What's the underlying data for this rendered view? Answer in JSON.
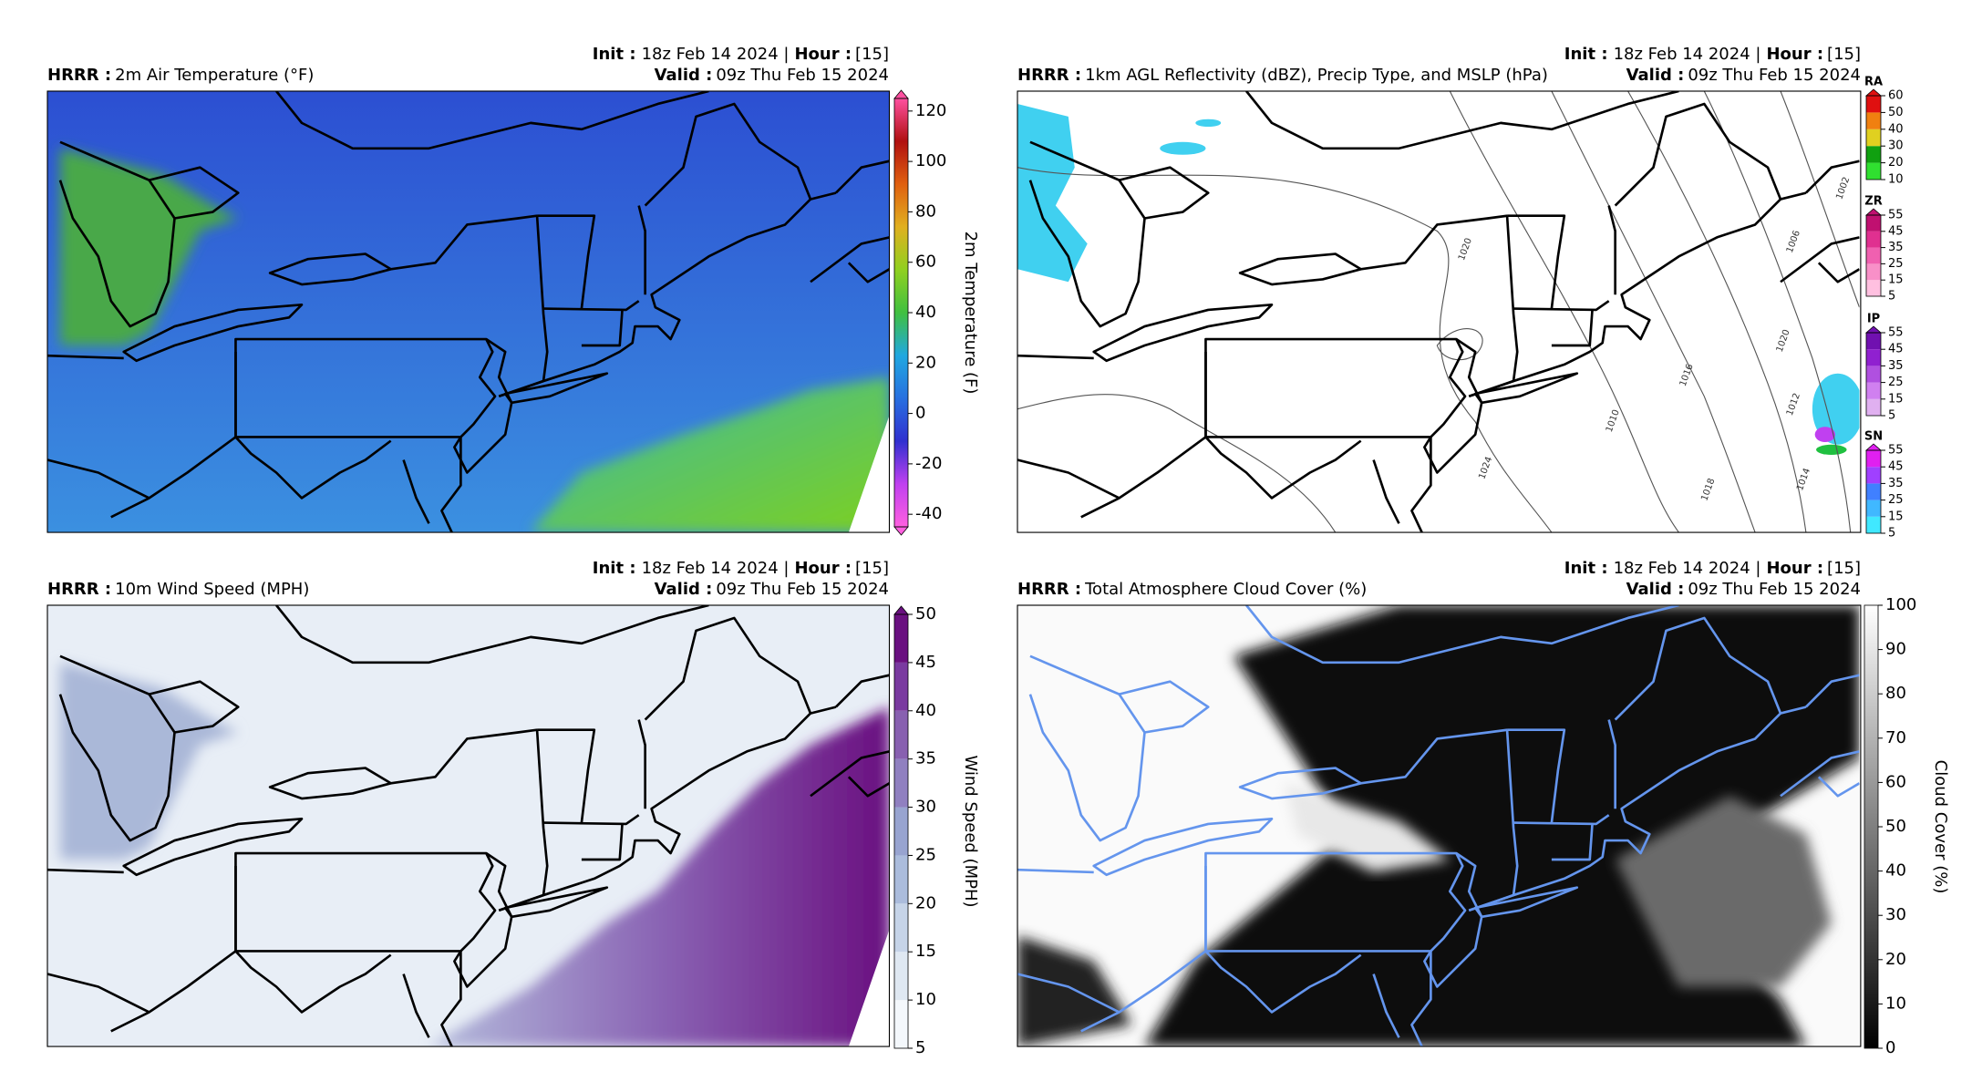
{
  "panels": [
    {
      "model": "HRRR :",
      "title": "2m Air Temperature (°F)",
      "init_label": "Init :",
      "init": "18z Feb 14 2024 |",
      "hour_label": "Hour :",
      "hour": "[15]",
      "valid_label": "Valid :",
      "valid": "09z Thu Feb 15 2024",
      "colorbar": {
        "label": "2m Temperature (F)",
        "lim": [
          -45,
          125
        ],
        "ticks": [
          -40,
          -20,
          0,
          20,
          40,
          60,
          80,
          100,
          120
        ],
        "extend": "both",
        "discrete": false,
        "colors": [
          "#ff60e0",
          "#c040f0",
          "#3030d0",
          "#2870e0",
          "#20a8e0",
          "#40c040",
          "#90d020",
          "#e0b020",
          "#e06010",
          "#b01010",
          "#ff50a0"
        ]
      }
    },
    {
      "model": "HRRR :",
      "title": "1km AGL Reflectivity (dBZ), Precip Type, and MSLP (hPa)",
      "init_label": "Init :",
      "init": "18z Feb 14 2024 |",
      "hour_label": "Hour :",
      "hour": "[15]",
      "valid_label": "Valid :",
      "valid": "09z Thu Feb 15 2024",
      "precip_bars": [
        {
          "label": "RA",
          "lim": [
            10,
            60
          ],
          "ticks": [
            10,
            20,
            30,
            40,
            50,
            60
          ],
          "extend": "max",
          "discrete": true,
          "colors": [
            "#30e030",
            "#10a010",
            "#e0d020",
            "#f08010",
            "#e01010"
          ]
        },
        {
          "label": "ZR",
          "lim": [
            5,
            55
          ],
          "ticks": [
            5,
            15,
            25,
            35,
            45,
            55
          ],
          "extend": "max",
          "discrete": true,
          "colors": [
            "#ffc0e0",
            "#f890c8",
            "#f060b0",
            "#e03090",
            "#c01070"
          ]
        },
        {
          "label": "IP",
          "lim": [
            5,
            55
          ],
          "ticks": [
            5,
            15,
            25,
            35,
            45,
            55
          ],
          "extend": "max",
          "discrete": true,
          "colors": [
            "#e0b0f0",
            "#d080f0",
            "#b050e0",
            "#9020d0",
            "#7010b0"
          ]
        },
        {
          "label": "SN",
          "lim": [
            5,
            55
          ],
          "ticks": [
            5,
            15,
            25,
            35,
            45,
            55
          ],
          "extend": "max",
          "discrete": true,
          "colors": [
            "#40e8ff",
            "#40b8ff",
            "#4080ff",
            "#a040ff",
            "#e020f0"
          ]
        }
      ],
      "isobar_labels": [
        "1020",
        "1010",
        "1016",
        "1012",
        "1020",
        "1024",
        "1018",
        "1014",
        "1006",
        "1002"
      ]
    },
    {
      "model": "HRRR :",
      "title": "10m Wind Speed (MPH)",
      "init_label": "Init :",
      "init": "18z Feb 14 2024 |",
      "hour_label": "Hour :",
      "hour": "[15]",
      "valid_label": "Valid :",
      "valid": "09z Thu Feb 15 2024",
      "colorbar": {
        "label": "Wind Speed (MPH)",
        "lim": [
          5,
          50
        ],
        "ticks": [
          5,
          10,
          15,
          20,
          25,
          30,
          35,
          40,
          45,
          50
        ],
        "extend": "max",
        "discrete": true,
        "colors": [
          "#f4f8fc",
          "#dfe8f2",
          "#c6d4e8",
          "#abbcdc",
          "#98a4d0",
          "#9080c0",
          "#8860b0",
          "#7a3aa0",
          "#6a1080"
        ]
      }
    },
    {
      "model": "HRRR :",
      "title": "Total Atmosphere Cloud Cover (%)",
      "init_label": "Init :",
      "init": "18z Feb 14 2024 |",
      "hour_label": "Hour :",
      "hour": "[15]",
      "valid_label": "Valid :",
      "valid": "09z Thu Feb 15 2024",
      "colorbar": {
        "label": "Cloud Cover (%)",
        "lim": [
          0,
          100
        ],
        "ticks": [
          0,
          10,
          20,
          30,
          40,
          50,
          60,
          70,
          80,
          90,
          100
        ],
        "extend": "none",
        "discrete": false,
        "colors": [
          "#000000",
          "#ffffff"
        ]
      }
    }
  ]
}
